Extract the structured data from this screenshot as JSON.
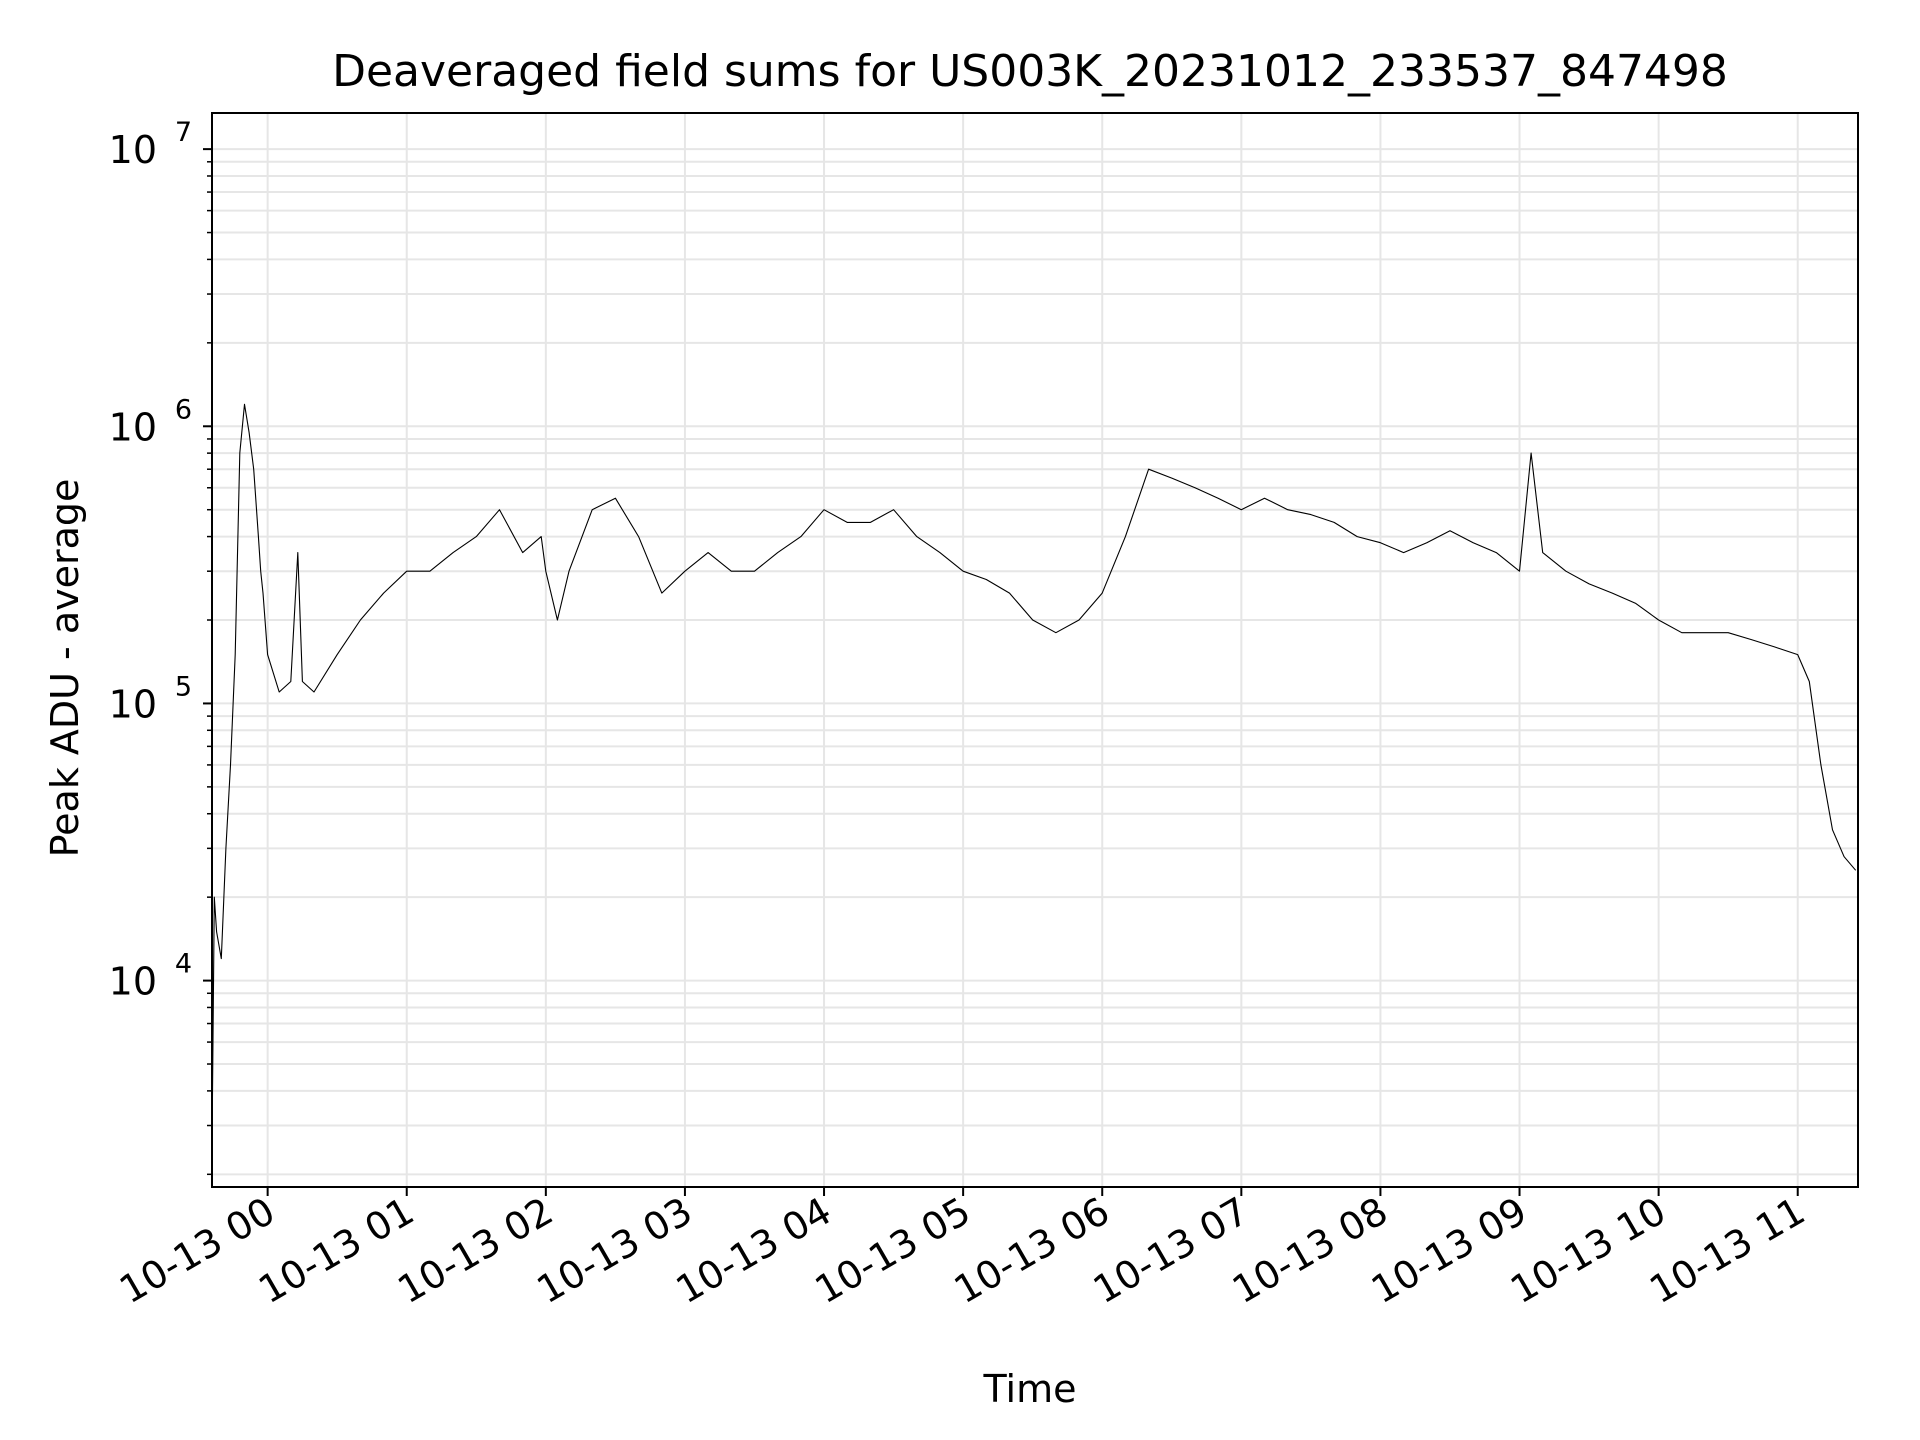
{
  "chart_data": {
    "type": "line",
    "title": "Deaveraged field sums for US003K_20231012_233537_847498",
    "xlabel": "Time",
    "ylabel": "Peak ADU - average",
    "yscale": "log",
    "ylim": [
      1800,
      13500000
    ],
    "xlim": [
      "2023-10-12 23:36",
      "2023-10-13 11:26"
    ],
    "grid": true,
    "minor_grid": true,
    "line_color": "#000000",
    "grid_color": "#e6e6e6",
    "x_ticks": [
      {
        "t": "2023-10-13 00:00",
        "label": "10-13 00"
      },
      {
        "t": "2023-10-13 01:00",
        "label": "10-13 01"
      },
      {
        "t": "2023-10-13 02:00",
        "label": "10-13 02"
      },
      {
        "t": "2023-10-13 03:00",
        "label": "10-13 03"
      },
      {
        "t": "2023-10-13 04:00",
        "label": "10-13 04"
      },
      {
        "t": "2023-10-13 05:00",
        "label": "10-13 05"
      },
      {
        "t": "2023-10-13 06:00",
        "label": "10-13 06"
      },
      {
        "t": "2023-10-13 07:00",
        "label": "10-13 07"
      },
      {
        "t": "2023-10-13 08:00",
        "label": "10-13 08"
      },
      {
        "t": "2023-10-13 09:00",
        "label": "10-13 09"
      },
      {
        "t": "2023-10-13 10:00",
        "label": "10-13 10"
      },
      {
        "t": "2023-10-13 11:00",
        "label": "10-13 11"
      }
    ],
    "y_ticks": [
      {
        "value": 10000,
        "base": "10",
        "exp": "4"
      },
      {
        "value": 100000,
        "base": "10",
        "exp": "5"
      },
      {
        "value": 1000000,
        "base": "10",
        "exp": "6"
      },
      {
        "value": 10000000,
        "base": "10",
        "exp": "7"
      }
    ],
    "series": [
      {
        "x": [
          "2023-10-12 23:36",
          "2023-10-12 23:37",
          "2023-10-12 23:38",
          "2023-10-12 23:40",
          "2023-10-12 23:42",
          "2023-10-12 23:44",
          "2023-10-12 23:46",
          "2023-10-12 23:48",
          "2023-10-12 23:50",
          "2023-10-12 23:52",
          "2023-10-12 23:54",
          "2023-10-12 23:56",
          "2023-10-12 23:57",
          "2023-10-12 23:58",
          "2023-10-13 00:00",
          "2023-10-13 00:05",
          "2023-10-13 00:10",
          "2023-10-13 00:13",
          "2023-10-13 00:15",
          "2023-10-13 00:20",
          "2023-10-13 00:30",
          "2023-10-13 00:40",
          "2023-10-13 00:50",
          "2023-10-13 01:00",
          "2023-10-13 01:10",
          "2023-10-13 01:20",
          "2023-10-13 01:30",
          "2023-10-13 01:40",
          "2023-10-13 01:50",
          "2023-10-13 01:58",
          "2023-10-13 02:00",
          "2023-10-13 02:05",
          "2023-10-13 02:10",
          "2023-10-13 02:20",
          "2023-10-13 02:30",
          "2023-10-13 02:40",
          "2023-10-13 02:50",
          "2023-10-13 03:00",
          "2023-10-13 03:10",
          "2023-10-13 03:20",
          "2023-10-13 03:30",
          "2023-10-13 03:40",
          "2023-10-13 03:50",
          "2023-10-13 04:00",
          "2023-10-13 04:10",
          "2023-10-13 04:20",
          "2023-10-13 04:30",
          "2023-10-13 04:40",
          "2023-10-13 04:50",
          "2023-10-13 05:00",
          "2023-10-13 05:10",
          "2023-10-13 05:20",
          "2023-10-13 05:30",
          "2023-10-13 05:40",
          "2023-10-13 05:50",
          "2023-10-13 06:00",
          "2023-10-13 06:10",
          "2023-10-13 06:20",
          "2023-10-13 06:30",
          "2023-10-13 06:40",
          "2023-10-13 06:50",
          "2023-10-13 07:00",
          "2023-10-13 07:10",
          "2023-10-13 07:20",
          "2023-10-13 07:30",
          "2023-10-13 07:40",
          "2023-10-13 07:50",
          "2023-10-13 08:00",
          "2023-10-13 08:10",
          "2023-10-13 08:20",
          "2023-10-13 08:30",
          "2023-10-13 08:40",
          "2023-10-13 08:50",
          "2023-10-13 09:00",
          "2023-10-13 09:05",
          "2023-10-13 09:10",
          "2023-10-13 09:20",
          "2023-10-13 09:30",
          "2023-10-13 09:40",
          "2023-10-13 09:50",
          "2023-10-13 10:00",
          "2023-10-13 10:10",
          "2023-10-13 10:20",
          "2023-10-13 10:30",
          "2023-10-13 10:40",
          "2023-10-13 10:50",
          "2023-10-13 11:00",
          "2023-10-13 11:05",
          "2023-10-13 11:10",
          "2023-10-13 11:15",
          "2023-10-13 11:20",
          "2023-10-13 11:25"
        ],
        "y": [
          2500,
          20000,
          15000,
          12000,
          30000,
          60000,
          150000,
          800000,
          1200000,
          950000,
          700000,
          400000,
          300000,
          250000,
          150000,
          110000,
          120000,
          350000,
          120000,
          110000,
          150000,
          200000,
          250000,
          300000,
          300000,
          350000,
          400000,
          500000,
          350000,
          400000,
          300000,
          200000,
          300000,
          500000,
          550000,
          400000,
          250000,
          300000,
          350000,
          300000,
          300000,
          350000,
          400000,
          500000,
          450000,
          450000,
          500000,
          400000,
          350000,
          300000,
          280000,
          250000,
          200000,
          180000,
          200000,
          250000,
          400000,
          700000,
          650000,
          600000,
          550000,
          500000,
          550000,
          500000,
          480000,
          450000,
          400000,
          380000,
          350000,
          380000,
          420000,
          380000,
          350000,
          300000,
          800000,
          350000,
          300000,
          270000,
          250000,
          230000,
          200000,
          180000,
          180000,
          180000,
          170000,
          160000,
          150000,
          120000,
          60000,
          35000,
          28000,
          25000
        ]
      }
    ]
  }
}
